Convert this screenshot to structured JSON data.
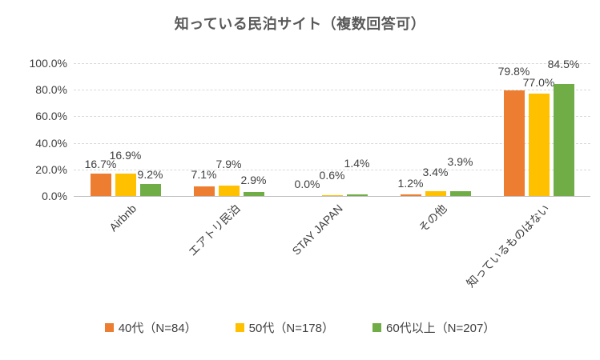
{
  "chart_data": {
    "type": "bar",
    "title": "知っている民泊サイト（複数回答可）",
    "categories": [
      "Airbnb",
      "エアトリ民泊",
      "STAY JAPAN",
      "その他",
      "知っているものはない"
    ],
    "series": [
      {
        "name": "40代（N=84）",
        "color": "#ED7D31",
        "values": [
          16.7,
          7.1,
          0.0,
          1.2,
          79.8
        ]
      },
      {
        "name": "50代（N=178）",
        "color": "#FFC000",
        "values": [
          16.9,
          7.9,
          0.6,
          3.4,
          77.0
        ]
      },
      {
        "name": "60代以上（N=207）",
        "color": "#70AD47",
        "values": [
          9.2,
          2.9,
          1.4,
          3.9,
          84.5
        ]
      }
    ],
    "xlabel": "",
    "ylabel": "",
    "ylim": [
      0,
      100
    ],
    "ytick_labels": [
      "0.0%",
      "20.0%",
      "40.0%",
      "60.0%",
      "80.0%",
      "100.0%"
    ],
    "grid": true,
    "data_labels": true,
    "label_format": "0.0%",
    "legend_position": "bottom"
  },
  "colors": {
    "title_text": "#595959",
    "label_text": "#404040",
    "gridline": "#d9d9d9",
    "axis_line": "#bfbfbf",
    "background": "#ffffff"
  }
}
